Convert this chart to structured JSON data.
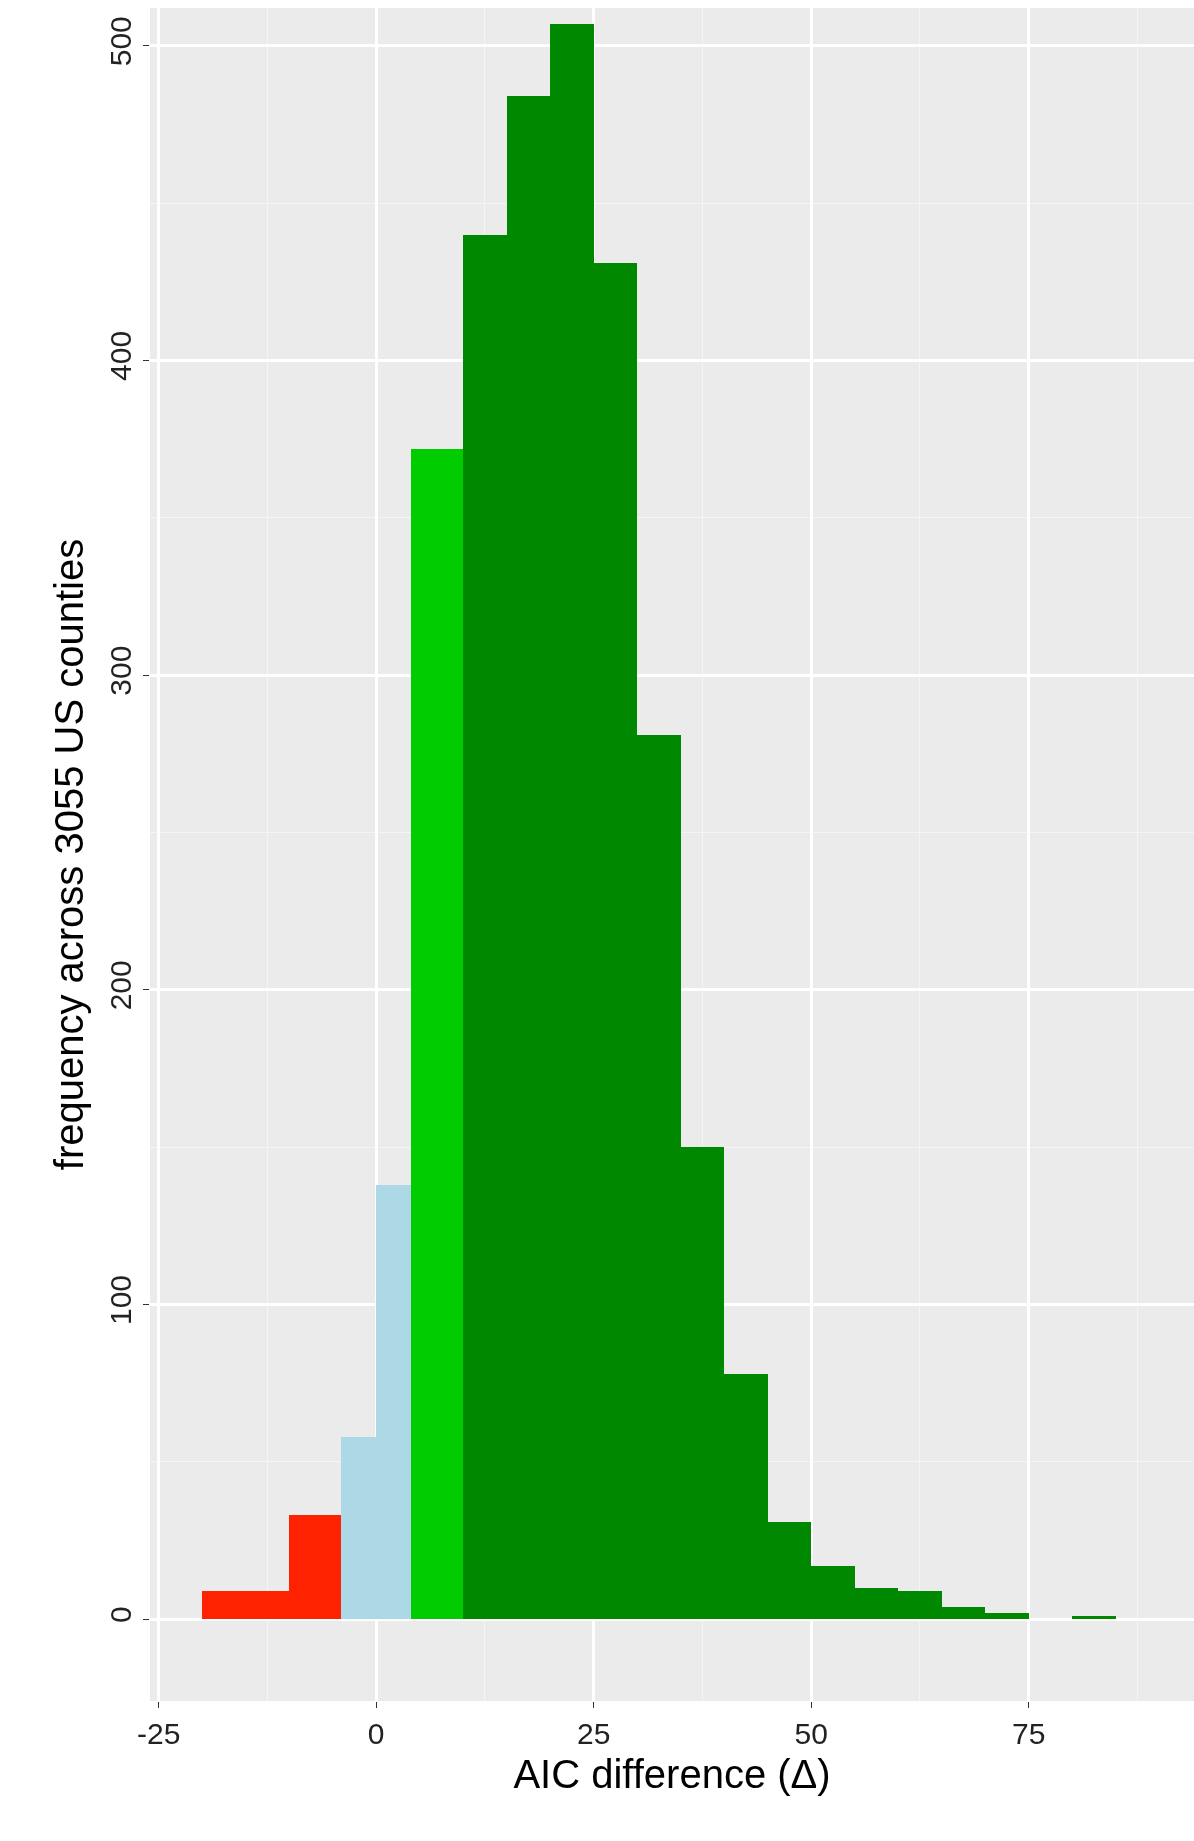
{
  "chart_data": {
    "type": "histogram",
    "xlabel": "AIC difference (Δ)",
    "ylabel": "frequency across 3055 US counties",
    "bins": [
      -20,
      -10,
      -4,
      0,
      4,
      10,
      15,
      20,
      25,
      30,
      35,
      40,
      45,
      50,
      55,
      60,
      65,
      70,
      75,
      80,
      85
    ],
    "values": [
      9,
      33,
      58,
      138,
      372,
      440,
      484,
      507,
      431,
      281,
      150,
      78,
      31,
      17,
      10,
      9,
      4,
      2,
      0,
      1
    ],
    "colors": [
      "#ff2200",
      "#ff2200",
      "#add8e6",
      "#add8e6",
      "#00cc00",
      "#008800",
      "#008800",
      "#008800",
      "#008800",
      "#008800",
      "#008800",
      "#008800",
      "#008800",
      "#008800",
      "#008800",
      "#008800",
      "#008800",
      "#008800",
      "#008800",
      "#008800"
    ],
    "xlim": [
      -26,
      94
    ],
    "ylim": [
      -26,
      512
    ],
    "xticks": [
      -25,
      0,
      25,
      50,
      75
    ],
    "yticks": [
      0,
      100,
      200,
      300,
      400,
      500
    ],
    "grid": true
  }
}
